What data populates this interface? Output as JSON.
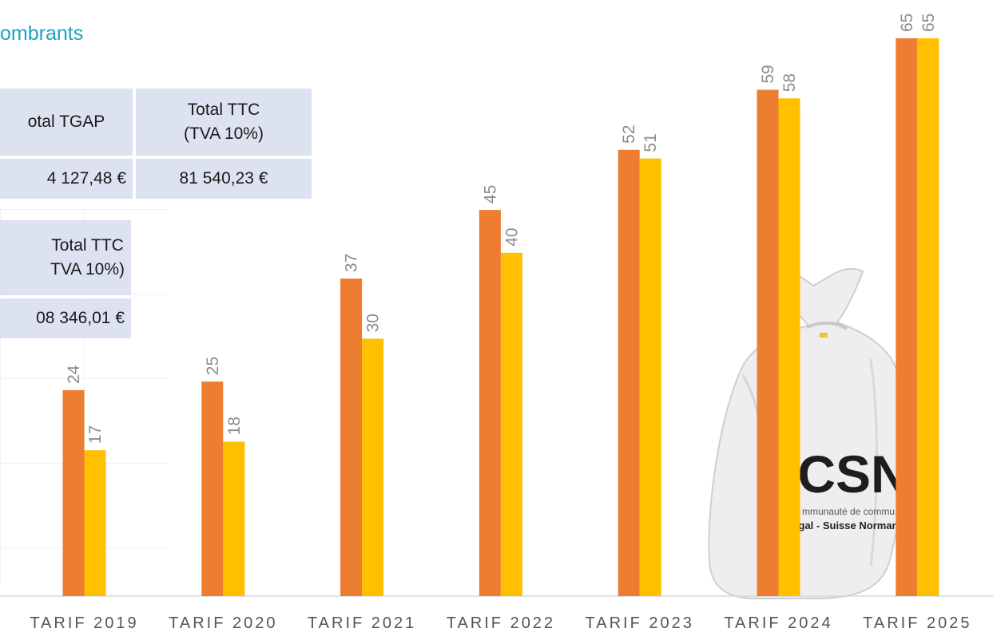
{
  "title": "ombrants",
  "table1": {
    "headers": [
      "otal TGAP",
      "Total TTC\n(TVA 10%)"
    ],
    "values": [
      "4 127,48 €",
      "81 540,23 €"
    ]
  },
  "table2": {
    "header": "Total TTC\nTVA 10%)",
    "value": "08 346,01 €"
  },
  "bag": {
    "logo_text": "CSN",
    "line1": "mmunauté de commu",
    "line2": "gal - Suisse Norman"
  },
  "chart_data": {
    "type": "bar",
    "categories": [
      "TARIF 2019",
      "TARIF 2020",
      "TARIF 2021",
      "TARIF 2022",
      "TARIF 2023",
      "TARIF 2024",
      "TARIF 2025"
    ],
    "series": [
      {
        "values": [
          24,
          25,
          37,
          45,
          52,
          59,
          65
        ],
        "color": "#ed7d31"
      },
      {
        "values": [
          17,
          18,
          30,
          40,
          51,
          58,
          65
        ],
        "color": "#ffc000"
      }
    ],
    "ylim": [
      0,
      65
    ],
    "grid": false,
    "legend": "none"
  }
}
